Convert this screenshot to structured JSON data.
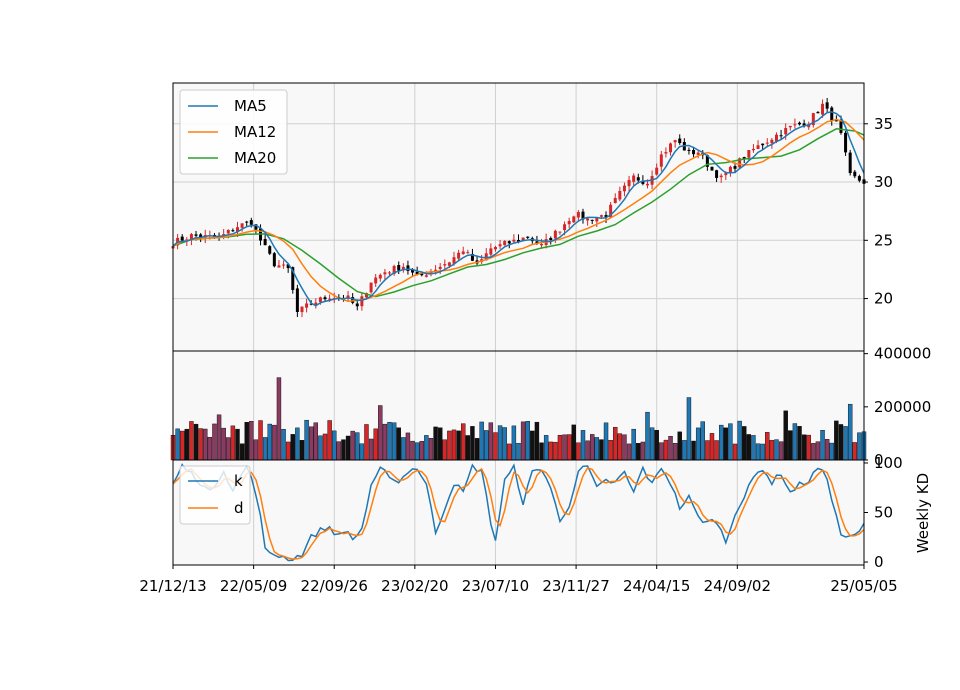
{
  "chart_data": {
    "type": "candlestick",
    "x_tick_labels": [
      "21/12/13",
      "22/05/09",
      "22/09/26",
      "23/02/20",
      "23/07/10",
      "23/11/27",
      "24/04/15",
      "24/09/02",
      "25/05/05"
    ],
    "price_panel": {
      "y_ticks": [
        20,
        25,
        30,
        35
      ],
      "ylim": [
        15.5,
        38.5
      ],
      "grid": true,
      "legend_position": "upper-left",
      "legend": [
        "MA5",
        "MA12",
        "MA20"
      ],
      "ma_colors": {
        "MA5": "#1f77b4",
        "MA12": "#ff7f0e",
        "MA20": "#2ca02c"
      },
      "candle_colors": {
        "up": "#d62728",
        "down": "#000000"
      },
      "close_anchors": [
        [
          0,
          24.8
        ],
        [
          4,
          25.4
        ],
        [
          10,
          25.2
        ],
        [
          14,
          26.2
        ],
        [
          17,
          26.6
        ],
        [
          19,
          25.0
        ],
        [
          22,
          23.0
        ],
        [
          25,
          22.5
        ],
        [
          27,
          18.8
        ],
        [
          30,
          19.6
        ],
        [
          34,
          20.2
        ],
        [
          38,
          20.0
        ],
        [
          40,
          19.2
        ],
        [
          43,
          21.5
        ],
        [
          46,
          22.3
        ],
        [
          50,
          22.8
        ],
        [
          53,
          21.8
        ],
        [
          56,
          22.4
        ],
        [
          60,
          23.2
        ],
        [
          63,
          24.2
        ],
        [
          66,
          22.8
        ],
        [
          69,
          24.3
        ],
        [
          73,
          24.8
        ],
        [
          77,
          25.3
        ],
        [
          80,
          24.5
        ],
        [
          84,
          26.0
        ],
        [
          87,
          27.3
        ],
        [
          90,
          26.8
        ],
        [
          94,
          27.2
        ],
        [
          97,
          29.0
        ],
        [
          100,
          30.4
        ],
        [
          103,
          30.0
        ],
        [
          106,
          32.3
        ],
        [
          109,
          33.6
        ],
        [
          112,
          32.5
        ],
        [
          114,
          32.6
        ],
        [
          117,
          31.0
        ],
        [
          119,
          30.3
        ],
        [
          123,
          31.8
        ],
        [
          126,
          32.8
        ],
        [
          130,
          33.8
        ],
        [
          134,
          34.7
        ],
        [
          138,
          35.2
        ],
        [
          141,
          36.6
        ],
        [
          144,
          35.0
        ],
        [
          145,
          34.0
        ],
        [
          147,
          30.5
        ],
        [
          150,
          30.0
        ]
      ]
    },
    "volume_panel": {
      "y_ticks": [
        0,
        200000,
        400000
      ],
      "ylim": [
        0,
        410000
      ],
      "spike_bars": [
        [
          10,
          170000
        ],
        [
          23,
          310000
        ],
        [
          45,
          205000
        ],
        [
          103,
          180000
        ],
        [
          112,
          235000
        ],
        [
          133,
          185000
        ],
        [
          147,
          210000
        ]
      ]
    },
    "kd_panel": {
      "ylabel": "Weekly KD",
      "y_ticks": [
        0,
        50,
        100
      ],
      "ylim": [
        -3,
        103
      ],
      "legend": [
        "k",
        "d"
      ],
      "legend_position": "upper-left",
      "colors": {
        "k": "#1f77b4",
        "d": "#ff7f0e"
      },
      "k_anchors": [
        [
          0,
          78
        ],
        [
          2,
          97
        ],
        [
          5,
          85
        ],
        [
          8,
          70
        ],
        [
          11,
          93
        ],
        [
          13,
          72
        ],
        [
          16,
          97
        ],
        [
          18,
          70
        ],
        [
          19,
          45
        ],
        [
          20,
          12
        ],
        [
          22,
          8
        ],
        [
          24,
          5
        ],
        [
          26,
          3
        ],
        [
          28,
          8
        ],
        [
          30,
          25
        ],
        [
          32,
          32
        ],
        [
          34,
          35
        ],
        [
          36,
          26
        ],
        [
          38,
          32
        ],
        [
          39,
          22
        ],
        [
          41,
          34
        ],
        [
          43,
          75
        ],
        [
          45,
          93
        ],
        [
          47,
          88
        ],
        [
          49,
          80
        ],
        [
          51,
          92
        ],
        [
          53,
          95
        ],
        [
          55,
          78
        ],
        [
          57,
          30
        ],
        [
          59,
          55
        ],
        [
          61,
          80
        ],
        [
          63,
          70
        ],
        [
          65,
          96
        ],
        [
          67,
          92
        ],
        [
          69,
          40
        ],
        [
          70,
          22
        ],
        [
          72,
          82
        ],
        [
          74,
          95
        ],
        [
          76,
          60
        ],
        [
          78,
          90
        ],
        [
          80,
          95
        ],
        [
          82,
          75
        ],
        [
          84,
          40
        ],
        [
          86,
          58
        ],
        [
          88,
          92
        ],
        [
          90,
          96
        ],
        [
          92,
          74
        ],
        [
          94,
          82
        ],
        [
          96,
          80
        ],
        [
          98,
          90
        ],
        [
          100,
          70
        ],
        [
          102,
          95
        ],
        [
          104,
          78
        ],
        [
          106,
          96
        ],
        [
          108,
          80
        ],
        [
          110,
          55
        ],
        [
          112,
          65
        ],
        [
          114,
          45
        ],
        [
          116,
          40
        ],
        [
          118,
          42
        ],
        [
          120,
          20
        ],
        [
          122,
          50
        ],
        [
          124,
          65
        ],
        [
          126,
          85
        ],
        [
          128,
          95
        ],
        [
          130,
          80
        ],
        [
          132,
          90
        ],
        [
          134,
          70
        ],
        [
          136,
          78
        ],
        [
          138,
          82
        ],
        [
          140,
          95
        ],
        [
          142,
          85
        ],
        [
          144,
          45
        ],
        [
          145,
          28
        ],
        [
          147,
          24
        ],
        [
          149,
          30
        ],
        [
          150,
          38
        ]
      ]
    },
    "n_periods": 151
  }
}
